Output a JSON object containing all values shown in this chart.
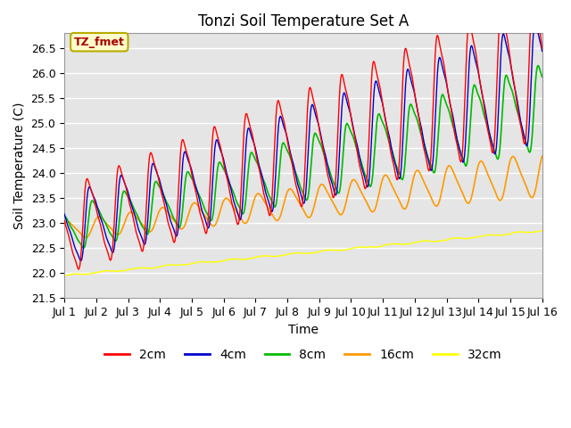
{
  "title": "Tonzi Soil Temperature Set A",
  "xlabel": "Time",
  "ylabel": "Soil Temperature (C)",
  "ylim": [
    21.5,
    26.8
  ],
  "xlim": [
    0,
    15
  ],
  "xtick_labels": [
    "Jul 1",
    "Jul 2",
    "Jul 3",
    "Jul 4",
    "Jul 5",
    "Jul 6",
    "Jul 7",
    "Jul 8",
    "Jul 9",
    "Jul 10",
    "Jul 11",
    "Jul 12",
    "Jul 13",
    "Jul 14",
    "Jul 15",
    "Jul 16"
  ],
  "colors": {
    "2cm": "#ff0000",
    "4cm": "#0000cc",
    "8cm": "#00bb00",
    "16cm": "#ff9900",
    "32cm": "#ffff00"
  },
  "annotation_text": "TZ_fmet",
  "annotation_color": "#aa0000",
  "annotation_bg": "#ffffcc",
  "annotation_edge": "#bbaa00",
  "bg_color": "#e5e5e5",
  "grid_color": "#ffffff",
  "title_fontsize": 12,
  "label_fontsize": 10,
  "tick_fontsize": 9
}
